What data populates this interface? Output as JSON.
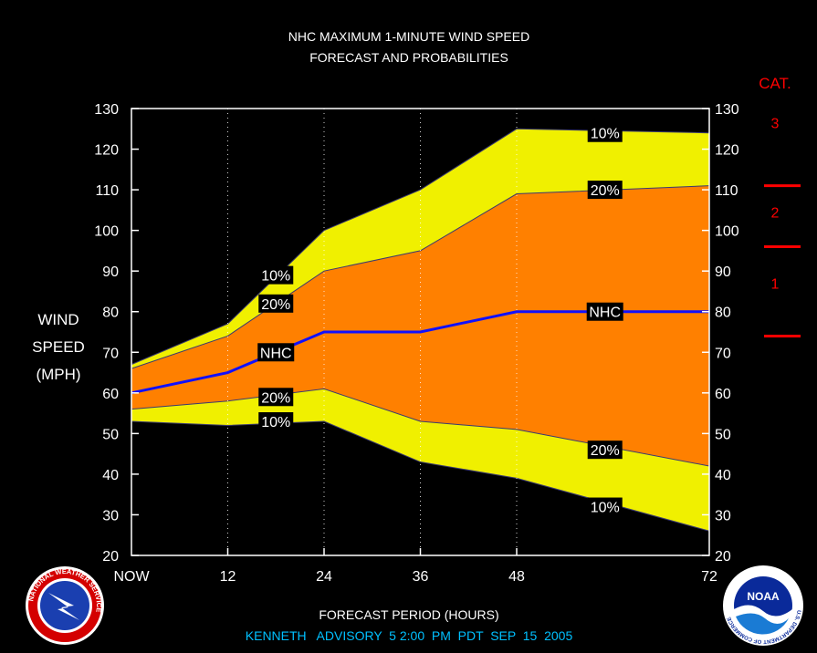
{
  "title_line1": "NHC MAXIMUM 1-MINUTE WIND SPEED",
  "title_line2": "FORECAST AND PROBABILITIES",
  "ylabel_lines": [
    "WIND",
    "SPEED",
    "(MPH)"
  ],
  "xlabel": "FORECAST PERIOD (HOURS)",
  "advisory": "KENNETH   ADVISORY  5 2:00  PM  PDT  SEP  15  2005",
  "category_header": "CAT.",
  "categories": [
    {
      "label": "3"
    },
    {
      "label": "2"
    },
    {
      "label": "1"
    }
  ],
  "category_thresholds_mph": [
    74,
    96,
    111
  ],
  "logos": {
    "left_text": "NATIONAL WEATHER SERVICE",
    "right_text": "U.S. DEPARTMENT OF COMMERCE",
    "right_center": "NOAA"
  },
  "colors": {
    "background": "#000000",
    "band_10pct": "#f0f000",
    "band_20pct": "#ff8000",
    "nhc_line": "#1010ff",
    "category_red": "#ff0000",
    "text": "#ffffff",
    "advisory_text": "#00c0ff"
  },
  "chart_data": {
    "type": "area",
    "x": [
      0,
      12,
      24,
      36,
      48,
      72
    ],
    "x_tick_labels": [
      "NOW",
      "12",
      "24",
      "36",
      "48",
      "72"
    ],
    "xlim": [
      0,
      72
    ],
    "ylim": [
      20,
      130
    ],
    "y_ticks": [
      20,
      30,
      40,
      50,
      60,
      70,
      80,
      90,
      100,
      110,
      120,
      130
    ],
    "vertical_grid_at": [
      12,
      24,
      36,
      48
    ],
    "series": [
      {
        "name": "NHC",
        "values": [
          60,
          65,
          75,
          75,
          80,
          80
        ]
      },
      {
        "name": "20%",
        "role": "upper",
        "values": [
          66,
          74,
          90,
          95,
          109,
          111
        ]
      },
      {
        "name": "20%",
        "role": "lower",
        "values": [
          56,
          58,
          61,
          53,
          51,
          42
        ]
      },
      {
        "name": "10%",
        "role": "upper",
        "values": [
          67,
          77,
          100,
          110,
          125,
          124
        ]
      },
      {
        "name": "10%",
        "role": "lower",
        "values": [
          53,
          52,
          53,
          43,
          39,
          26
        ]
      }
    ],
    "labels": [
      {
        "text": "10%",
        "x": 18,
        "y": 89
      },
      {
        "text": "20%",
        "x": 18,
        "y": 82
      },
      {
        "text": "NHC",
        "x": 18,
        "y": 70
      },
      {
        "text": "20%",
        "x": 18,
        "y": 59
      },
      {
        "text": "10%",
        "x": 18,
        "y": 53
      },
      {
        "text": "10%",
        "x": 59,
        "y": 124
      },
      {
        "text": "20%",
        "x": 59,
        "y": 110
      },
      {
        "text": "NHC",
        "x": 59,
        "y": 80
      },
      {
        "text": "20%",
        "x": 59,
        "y": 46
      },
      {
        "text": "10%",
        "x": 59,
        "y": 32
      }
    ]
  }
}
